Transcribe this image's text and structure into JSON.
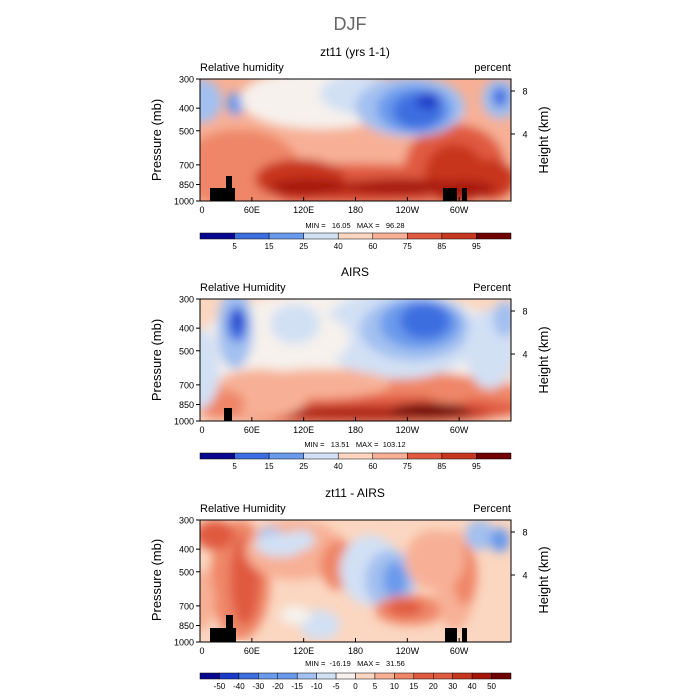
{
  "figure": {
    "title": "DJF"
  },
  "chart_data": [
    {
      "type": "heatmap",
      "title": "zt11 (yrs 1-1)",
      "left_label": "Relative humidity",
      "right_label": "percent",
      "ylabel": "Pressure (mb)",
      "y2label": "Height (km)",
      "x_ticks": [
        "0",
        "60E",
        "120E",
        "180",
        "120W",
        "60W"
      ],
      "y_ticks": [
        "300",
        "400",
        "500",
        "700",
        "850",
        "1000"
      ],
      "y2_ticks": [
        "8",
        "4"
      ],
      "stats": "MIN =   16.05   MAX =   96.28",
      "min": 16.05,
      "max": 96.28,
      "colorbar_labels": [
        "5",
        "15",
        "25",
        "40",
        "60",
        "75",
        "85",
        "95"
      ]
    },
    {
      "type": "heatmap",
      "title": "AIRS",
      "left_label": "Relative Humidity",
      "right_label": "Percent",
      "ylabel": "Pressure (mb)",
      "y2label": "Height (km)",
      "x_ticks": [
        "0",
        "60E",
        "120E",
        "180",
        "120W",
        "60W"
      ],
      "y_ticks": [
        "300",
        "400",
        "500",
        "700",
        "850",
        "1000"
      ],
      "y2_ticks": [
        "8",
        "4"
      ],
      "stats": "MIN =   13.51   MAX =  103.12",
      "min": 13.51,
      "max": 103.12,
      "colorbar_labels": [
        "5",
        "15",
        "25",
        "40",
        "60",
        "75",
        "85",
        "95"
      ]
    },
    {
      "type": "heatmap",
      "title": "zt11 - AIRS",
      "left_label": "Relative Humidity",
      "right_label": "Percent",
      "ylabel": "Pressure (mb)",
      "y2label": "Height (km)",
      "x_ticks": [
        "0",
        "60E",
        "120E",
        "180",
        "120W",
        "60W"
      ],
      "y_ticks": [
        "300",
        "400",
        "500",
        "700",
        "850",
        "1000"
      ],
      "y2_ticks": [
        "8",
        "4"
      ],
      "stats": "MIN =  -16.19   MAX =   31.56",
      "min": -16.19,
      "max": 31.56,
      "colorbar_labels": [
        "-50",
        "-40",
        "-30",
        "-20",
        "-15",
        "-10",
        "-5",
        "0",
        "5",
        "10",
        "15",
        "20",
        "30",
        "40",
        "50"
      ]
    }
  ],
  "colors": {
    "scale": [
      "#08088f",
      "#1a3bc8",
      "#3c6ee0",
      "#6a9aec",
      "#a2c0f0",
      "#d2e0f4",
      "#f6f1ec",
      "#fbd6c0",
      "#f7b095",
      "#ef8668",
      "#e05a3f",
      "#c7361f",
      "#a51608",
      "#6e0000"
    ]
  }
}
